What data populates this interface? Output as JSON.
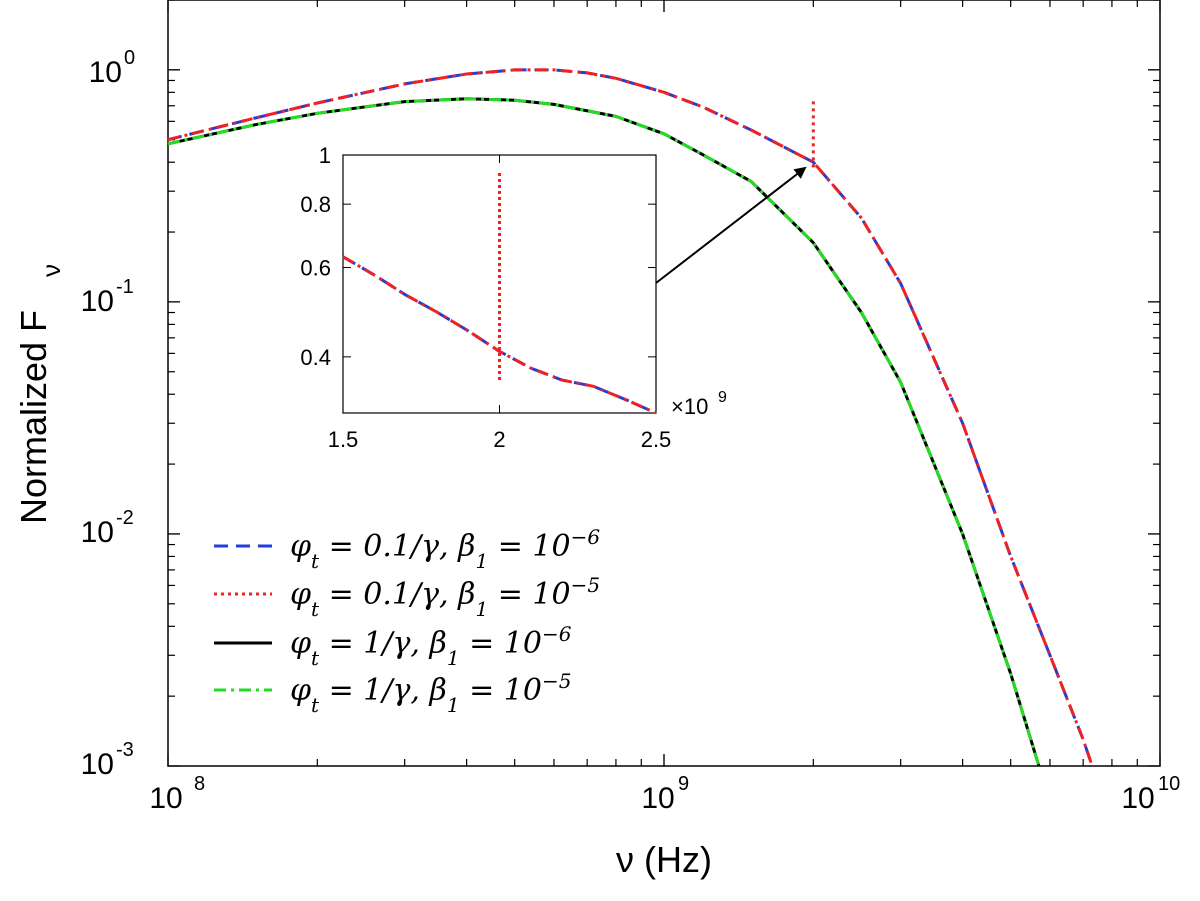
{
  "chart_data": [
    {
      "type": "line",
      "xlabel": "ν (Hz)",
      "ylabel": "Normalized F",
      "ylabel_sub": "ν",
      "xscale": "log",
      "yscale": "log",
      "xlim": [
        100000000,
        10000000000
      ],
      "ylim": [
        0.001,
        2
      ],
      "x_ticks": [
        {
          "value": 100000000,
          "base": "10",
          "exp": "8"
        },
        {
          "value": 1000000000,
          "base": "10",
          "exp": "9"
        },
        {
          "value": 10000000000,
          "base": "10",
          "exp": "10"
        }
      ],
      "y_ticks": [
        {
          "value": 1,
          "base": "10",
          "exp": "0"
        },
        {
          "value": 0.1,
          "base": "10",
          "exp": "-1"
        },
        {
          "value": 0.01,
          "base": "10",
          "exp": "-2"
        },
        {
          "value": 0.001,
          "base": "10",
          "exp": "-3"
        }
      ],
      "grid": false,
      "legend_position": "bottom-left",
      "series": [
        {
          "name": "φt = 0.1/γ, β1 = 10⁻⁶",
          "legend_main": "φ",
          "legend_sub": "t",
          "legend_mid": " = 0.1/γ, β",
          "legend_sub2": "1",
          "legend_eq": " = 10",
          "legend_exp": "−6",
          "color": "#1f3fdc",
          "style": "dashed",
          "x": [
            100000000,
            150000000,
            200000000,
            300000000,
            400000000,
            500000000,
            600000000,
            700000000,
            800000000,
            1000000000,
            1200000000,
            1500000000,
            2000000000,
            2500000000,
            3000000000,
            4000000000,
            5000000000,
            6000000000,
            7000000000,
            7300000000
          ],
          "y": [
            0.5,
            0.62,
            0.72,
            0.87,
            0.96,
            1.0,
            1.0,
            0.97,
            0.92,
            0.8,
            0.69,
            0.55,
            0.4,
            0.23,
            0.12,
            0.03,
            0.008,
            0.003,
            0.0013,
            0.001
          ]
        },
        {
          "name": "φt = 0.1/γ, β1 = 10⁻⁵",
          "legend_main": "φ",
          "legend_sub": "t",
          "legend_mid": " = 0.1/γ, β",
          "legend_sub2": "1",
          "legend_eq": " = 10",
          "legend_exp": "−5",
          "color": "#ee2222",
          "style": "dashdot",
          "x": [
            100000000,
            150000000,
            200000000,
            300000000,
            400000000,
            500000000,
            600000000,
            700000000,
            800000000,
            1000000000,
            1200000000,
            1500000000,
            2000000000,
            2500000000,
            3000000000,
            4000000000,
            5000000000,
            6000000000,
            7000000000,
            7300000000
          ],
          "y": [
            0.5,
            0.62,
            0.72,
            0.87,
            0.96,
            1.0,
            1.0,
            0.97,
            0.92,
            0.8,
            0.69,
            0.55,
            0.4,
            0.23,
            0.12,
            0.03,
            0.008,
            0.003,
            0.0013,
            0.001
          ],
          "spike": {
            "x": 2000000000,
            "y_from": 0.38,
            "y_to": 0.75
          }
        },
        {
          "name": "φt = 1/γ, β1 = 10⁻⁶",
          "legend_main": "φ",
          "legend_sub": "t",
          "legend_mid": " = 1/γ, β",
          "legend_sub2": "1",
          "legend_eq": " = 10",
          "legend_exp": "−6",
          "color": "#000000",
          "style": "solid",
          "x": [
            100000000,
            150000000,
            200000000,
            300000000,
            400000000,
            500000000,
            600000000,
            800000000,
            1000000000,
            1200000000,
            1500000000,
            2000000000,
            2500000000,
            3000000000,
            4000000000,
            5000000000,
            5700000000
          ],
          "y": [
            0.48,
            0.58,
            0.65,
            0.73,
            0.75,
            0.74,
            0.71,
            0.63,
            0.53,
            0.43,
            0.33,
            0.18,
            0.09,
            0.045,
            0.01,
            0.0025,
            0.001
          ]
        },
        {
          "name": "φt = 1/γ, β1 = 10⁻⁵",
          "legend_main": "φ",
          "legend_sub": "t",
          "legend_mid": " = 1/γ, β",
          "legend_sub2": "1",
          "legend_eq": " = 10",
          "legend_exp": "−5",
          "color": "#22dd22",
          "style": "dashdot",
          "x": [
            100000000,
            150000000,
            200000000,
            300000000,
            400000000,
            500000000,
            600000000,
            800000000,
            1000000000,
            1200000000,
            1500000000,
            2000000000,
            2500000000,
            3000000000,
            4000000000,
            5000000000,
            5700000000
          ],
          "y": [
            0.48,
            0.58,
            0.65,
            0.73,
            0.75,
            0.74,
            0.71,
            0.63,
            0.53,
            0.43,
            0.33,
            0.18,
            0.09,
            0.045,
            0.01,
            0.0025,
            0.001
          ]
        }
      ]
    },
    {
      "type": "line",
      "role": "inset",
      "xscale": "linear",
      "yscale": "log",
      "xlim": [
        1.5,
        2.5
      ],
      "ylim": [
        0.31,
        1
      ],
      "x_multiplier": "×10",
      "x_multiplier_exp": "9",
      "x_ticks": [
        "1.5",
        "2",
        "2.5"
      ],
      "x_tick_values": [
        1.5,
        2,
        2.5
      ],
      "y_ticks": [
        "1",
        "0.8",
        "0.6",
        "0.4"
      ],
      "y_tick_values": [
        1,
        0.8,
        0.6,
        0.4
      ],
      "series": [
        {
          "name": "blue dashed",
          "color": "#1f3fdc",
          "style": "dashed",
          "x": [
            1.5,
            1.6,
            1.7,
            1.8,
            1.9,
            2.0,
            2.1,
            2.2,
            2.3,
            2.4,
            2.5
          ],
          "y": [
            0.63,
            0.58,
            0.53,
            0.49,
            0.45,
            0.41,
            0.38,
            0.36,
            0.35,
            0.33,
            0.31
          ]
        },
        {
          "name": "red dashdot",
          "color": "#ee2222",
          "style": "dashdot",
          "x": [
            1.5,
            1.6,
            1.7,
            1.8,
            1.9,
            2.0,
            2.1,
            2.2,
            2.3,
            2.4,
            2.5
          ],
          "y": [
            0.63,
            0.58,
            0.53,
            0.49,
            0.45,
            0.41,
            0.38,
            0.36,
            0.35,
            0.33,
            0.31
          ],
          "spike": {
            "x": 2.0,
            "y_from": 0.36,
            "y_to": 0.93
          }
        }
      ]
    }
  ]
}
